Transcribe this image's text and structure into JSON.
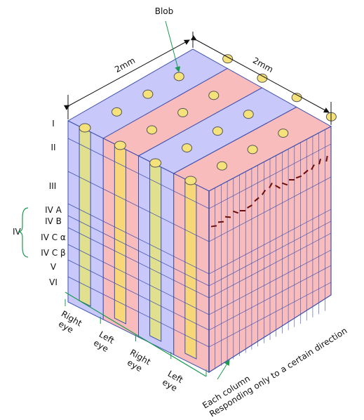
{
  "blob_label": "Blob",
  "dimensions": [
    "2mm",
    "2mm"
  ],
  "layers": [
    "I",
    "II",
    "III",
    "IV A",
    "IV B",
    "IV C α",
    "IV C β",
    "V",
    "VI"
  ],
  "layer_group": "IV",
  "eyes": [
    [
      "Right",
      "eye"
    ],
    [
      "Left",
      "eye"
    ],
    [
      "Right",
      "eye"
    ],
    [
      "Left",
      "eye"
    ]
  ],
  "column_note": [
    "Each column",
    "Responding only to a certain direction"
  ]
}
